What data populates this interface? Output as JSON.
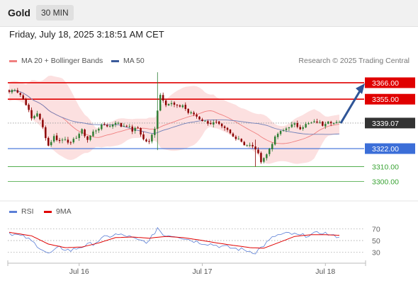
{
  "header": {
    "title": "Gold",
    "timeframe": "30 MIN"
  },
  "timestamp": "Friday, July 18, 2025 3:18:51 AM CET",
  "legend": {
    "bollinger": "MA 20 + Bollinger Bands",
    "ma50": "MA 50",
    "copyright": "Research © 2025 Trading Central",
    "rsi": "RSI",
    "rsi_ma": "9MA"
  },
  "colors": {
    "up": "#2e7d32",
    "down": "#8b0000",
    "resistance": "#e00000",
    "support_blue": "#3b6ed8",
    "support_green": "#3aa335",
    "bollinger_fill": "#fbdada",
    "ma20": "#f08080",
    "ma50": "#6f7fb8",
    "rsi": "#5b7fd6",
    "rsi_ma": "#e00000",
    "current": "#333333"
  },
  "chart_data": [
    {
      "type": "candlestick",
      "title": "Gold",
      "ylim": [
        3288,
        3374
      ],
      "x_labels": [
        "Jul 16",
        "Jul 17",
        "Jul 18"
      ],
      "current_price": "3339.07",
      "levels": [
        {
          "label": "3366.00",
          "value": 3366,
          "kind": "resistance"
        },
        {
          "label": "3355.00",
          "value": 3355,
          "kind": "resistance"
        },
        {
          "label": "3322.00",
          "value": 3322,
          "kind": "support_blue"
        },
        {
          "label": "3310.00",
          "value": 3310,
          "kind": "support_green"
        },
        {
          "label": "3300.00",
          "value": 3300,
          "kind": "support_green"
        }
      ],
      "forecast": {
        "from": 3339,
        "to": 3366
      },
      "anchors": [
        [
          0,
          3360
        ],
        [
          2,
          3362
        ],
        [
          4,
          3358
        ],
        [
          6,
          3352
        ],
        [
          8,
          3342
        ],
        [
          10,
          3346
        ],
        [
          12,
          3336
        ],
        [
          14,
          3324
        ],
        [
          16,
          3330
        ],
        [
          18,
          3327
        ],
        [
          20,
          3329
        ],
        [
          22,
          3325
        ],
        [
          24,
          3330
        ],
        [
          26,
          3334
        ],
        [
          28,
          3328
        ],
        [
          30,
          3333
        ],
        [
          32,
          3336
        ],
        [
          34,
          3338
        ],
        [
          36,
          3337
        ],
        [
          38,
          3340
        ],
        [
          40,
          3337
        ],
        [
          42,
          3338
        ],
        [
          44,
          3334
        ],
        [
          46,
          3336
        ],
        [
          48,
          3328
        ],
        [
          50,
          3326
        ],
        [
          52,
          3336
        ],
        [
          53,
          3348
        ],
        [
          54,
          3358
        ],
        [
          56,
          3352
        ],
        [
          58,
          3352
        ],
        [
          60,
          3350
        ],
        [
          62,
          3351
        ],
        [
          64,
          3346
        ],
        [
          66,
          3345
        ],
        [
          68,
          3342
        ],
        [
          70,
          3340
        ],
        [
          72,
          3339
        ],
        [
          74,
          3339
        ],
        [
          76,
          3336
        ],
        [
          78,
          3334
        ],
        [
          80,
          3330
        ],
        [
          82,
          3329
        ],
        [
          84,
          3325
        ],
        [
          86,
          3324
        ],
        [
          88,
          3322
        ],
        [
          90,
          3314
        ],
        [
          92,
          3318
        ],
        [
          94,
          3326
        ],
        [
          96,
          3332
        ],
        [
          98,
          3334
        ],
        [
          100,
          3337
        ],
        [
          102,
          3338
        ],
        [
          104,
          3336
        ],
        [
          106,
          3338
        ],
        [
          108,
          3339
        ],
        [
          110,
          3340
        ],
        [
          112,
          3338
        ],
        [
          114,
          3341
        ],
        [
          116,
          3339
        ],
        [
          118,
          3339
        ]
      ],
      "candle_count": 119,
      "spikes": [
        {
          "index": 53,
          "high": 3373,
          "low": 3321
        },
        {
          "index": 88,
          "high": 3328,
          "low": 3310
        }
      ]
    },
    {
      "type": "line",
      "title": "RSI",
      "ylim": [
        20,
        80
      ],
      "y_ticks": [
        70,
        50,
        30
      ],
      "series": [
        {
          "name": "RSI",
          "anchors": [
            [
              0,
              63
            ],
            [
              6,
              55
            ],
            [
              10,
              42
            ],
            [
              14,
              27
            ],
            [
              18,
              38
            ],
            [
              22,
              33
            ],
            [
              26,
              40
            ],
            [
              30,
              45
            ],
            [
              34,
              55
            ],
            [
              38,
              60
            ],
            [
              42,
              58
            ],
            [
              46,
              50
            ],
            [
              50,
              48
            ],
            [
              53,
              72
            ],
            [
              55,
              60
            ],
            [
              60,
              58
            ],
            [
              64,
              52
            ],
            [
              68,
              47
            ],
            [
              72,
              44
            ],
            [
              76,
              40
            ],
            [
              80,
              37
            ],
            [
              84,
              34
            ],
            [
              88,
              30
            ],
            [
              91,
              42
            ],
            [
              95,
              58
            ],
            [
              100,
              62
            ],
            [
              104,
              58
            ],
            [
              108,
              60
            ],
            [
              112,
              64
            ],
            [
              116,
              57
            ],
            [
              118,
              58
            ]
          ]
        },
        {
          "name": "9MA",
          "anchors": [
            [
              0,
              64
            ],
            [
              8,
              58
            ],
            [
              14,
              44
            ],
            [
              20,
              38
            ],
            [
              26,
              39
            ],
            [
              32,
              46
            ],
            [
              38,
              55
            ],
            [
              44,
              56
            ],
            [
              50,
              54
            ],
            [
              56,
              57
            ],
            [
              62,
              55
            ],
            [
              68,
              51
            ],
            [
              74,
              46
            ],
            [
              80,
              42
            ],
            [
              86,
              38
            ],
            [
              91,
              37
            ],
            [
              96,
              46
            ],
            [
              102,
              57
            ],
            [
              108,
              60
            ],
            [
              112,
              60
            ],
            [
              118,
              59
            ]
          ]
        }
      ]
    }
  ]
}
